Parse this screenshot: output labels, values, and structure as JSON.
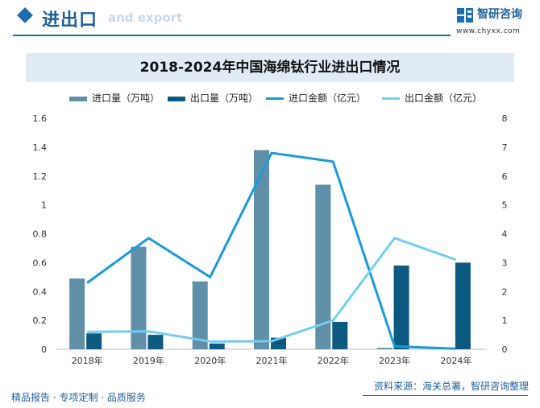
{
  "header": {
    "section_title": "进出口",
    "section_sub": "and export",
    "logo_name": "智研咨询",
    "logo_url": "www.chyxx.com"
  },
  "footer": {
    "left": "精品报告 · 专项定制 · 品质服务",
    "source": "资料来源：海关总署，智研咨询整理"
  },
  "colors": {
    "import_volume": "#6090a8",
    "export_volume": "#0d5a80",
    "import_amount": "#1a9ad6",
    "export_amount": "#74cdef",
    "brand": "#1e6fb0"
  },
  "chart_data": {
    "type": "bar+line",
    "title": "2018-2024年中国海绵钛行业进出口情况",
    "categories": [
      "2018年",
      "2019年",
      "2020年",
      "2021年",
      "2022年",
      "2023年",
      "2024年"
    ],
    "series": [
      {
        "name": "进口量（万吨）",
        "type": "bar",
        "axis": "left",
        "values": [
          0.49,
          0.71,
          0.47,
          1.38,
          1.14,
          0.01,
          0
        ]
      },
      {
        "name": "出口量（万吨）",
        "type": "bar",
        "axis": "left",
        "values": [
          0.11,
          0.1,
          0.04,
          0.08,
          0.19,
          0.58,
          0.6
        ]
      },
      {
        "name": "进口金额（亿元）",
        "type": "line",
        "axis": "right",
        "values": [
          2.3,
          3.85,
          2.5,
          6.8,
          6.5,
          0.1,
          0.02
        ]
      },
      {
        "name": "出口金额（亿元）",
        "type": "line",
        "axis": "right",
        "values": [
          0.6,
          0.62,
          0.27,
          0.28,
          1.0,
          3.85,
          3.1
        ]
      }
    ],
    "y_left": {
      "min": 0,
      "max": 1.6,
      "ticks": [
        "0",
        "0.2",
        "0.4",
        "0.6",
        "0.8",
        "1",
        "1.2",
        "1.4",
        "1.6"
      ]
    },
    "y_right": {
      "min": 0,
      "max": 8,
      "ticks": [
        "0",
        "1",
        "2",
        "3",
        "4",
        "5",
        "6",
        "7",
        "8"
      ]
    },
    "grid": false,
    "legend_position": "top"
  }
}
